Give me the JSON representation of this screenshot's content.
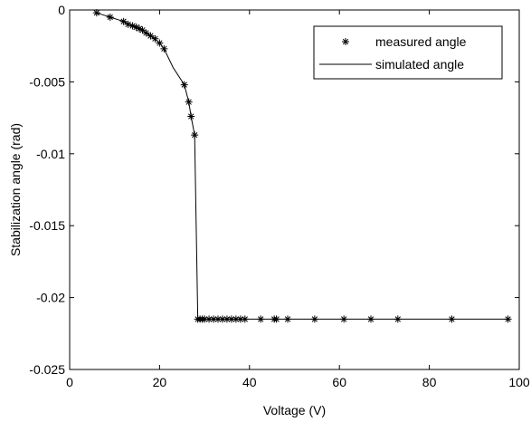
{
  "chart_data": {
    "type": "line",
    "xlabel": "Voltage (V)",
    "ylabel": "Stabilization angle (rad)",
    "xlim": [
      0,
      100
    ],
    "ylim": [
      -0.025,
      0
    ],
    "x_ticks": [
      0,
      20,
      40,
      60,
      80,
      100
    ],
    "y_ticks": [
      0,
      -0.005,
      -0.01,
      -0.015,
      -0.02,
      -0.025
    ],
    "x_tick_labels": [
      "0",
      "20",
      "40",
      "60",
      "80",
      "100"
    ],
    "y_tick_labels": [
      "0",
      "-0.005",
      "-0.01",
      "-0.015",
      "-0.02",
      "-0.025"
    ],
    "grid": false,
    "legend_position": "top-right",
    "series": [
      {
        "name": "measured angle",
        "style": "markers",
        "marker": "asterisk",
        "color": "#000000",
        "x": [
          6,
          9,
          12,
          13,
          14,
          14.8,
          15.5,
          16.2,
          17,
          18,
          19,
          20,
          21,
          25.5,
          26.5,
          27,
          27.8,
          28.5,
          29,
          29.5,
          30,
          31,
          32,
          33,
          34,
          35,
          36,
          37,
          38,
          39,
          42.5,
          45.5,
          46,
          48.5,
          54.5,
          61,
          67,
          73,
          85,
          97.5
        ],
        "y": [
          -0.0002,
          -0.0005,
          -0.0008,
          -0.001,
          -0.0011,
          -0.0012,
          -0.0013,
          -0.0014,
          -0.0016,
          -0.0018,
          -0.002,
          -0.0023,
          -0.0027,
          -0.0052,
          -0.0064,
          -0.0074,
          -0.0087,
          -0.0215,
          -0.0215,
          -0.0215,
          -0.0215,
          -0.0215,
          -0.0215,
          -0.0215,
          -0.0215,
          -0.0215,
          -0.0215,
          -0.0215,
          -0.0215,
          -0.0215,
          -0.0215,
          -0.0215,
          -0.0215,
          -0.0215,
          -0.0215,
          -0.0215,
          -0.0215,
          -0.0215,
          -0.0215,
          -0.0215
        ]
      },
      {
        "name": "simulated angle",
        "style": "line",
        "color": "#000000",
        "x": [
          6,
          9,
          12,
          14,
          16,
          18,
          20,
          21,
          23,
          25.5,
          26.5,
          27,
          27.8,
          28.5,
          30,
          40,
          60,
          80,
          97.5
        ],
        "y": [
          -0.0002,
          -0.0005,
          -0.0008,
          -0.0011,
          -0.0014,
          -0.0018,
          -0.0023,
          -0.0027,
          -0.004,
          -0.0052,
          -0.0064,
          -0.0074,
          -0.0087,
          -0.0215,
          -0.0215,
          -0.0215,
          -0.0215,
          -0.0215,
          -0.0215
        ]
      }
    ]
  }
}
